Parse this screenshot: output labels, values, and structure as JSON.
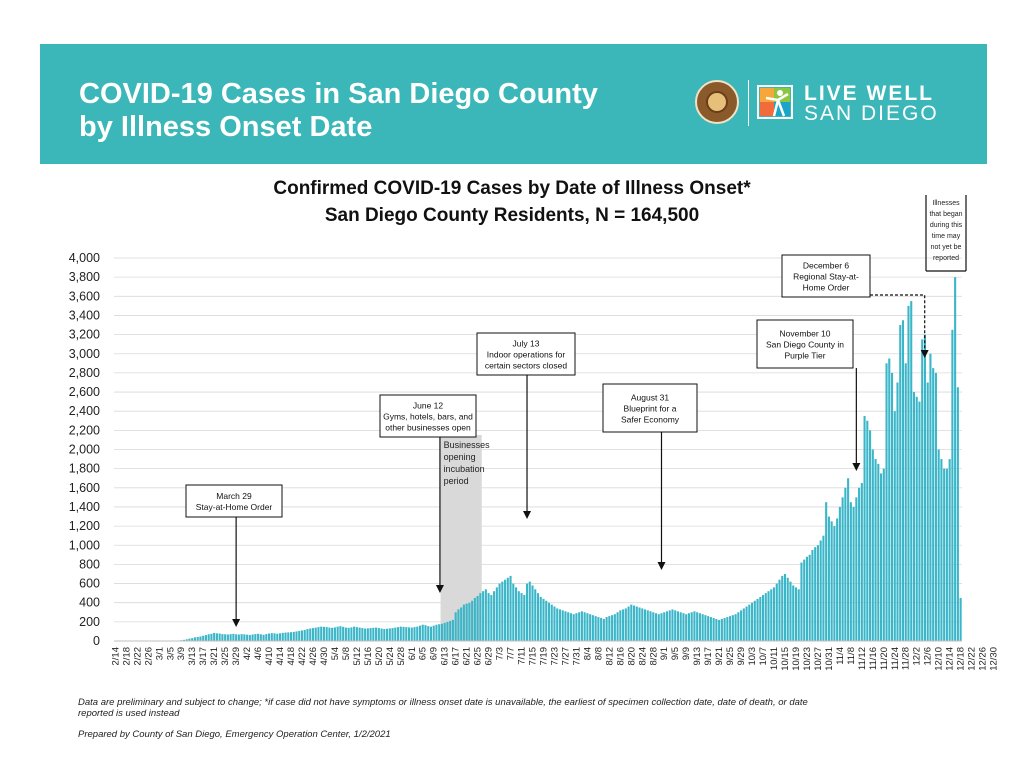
{
  "header": {
    "title_line1": "COVID-19 Cases in San Diego County",
    "title_line2": "by Illness Onset Date",
    "logo_line1": "LIVE WELL",
    "logo_line2": "SAN DIEGO"
  },
  "chart_data": {
    "type": "bar",
    "title": "Confirmed COVID-19 Cases by Date of Illness Onset*",
    "subtitle": "San Diego County Residents, N = 164,500",
    "ylim": [
      0,
      4000
    ],
    "yticks": [
      "0",
      "200",
      "400",
      "600",
      "800",
      "1,000",
      "1,200",
      "1,400",
      "1,600",
      "1,800",
      "2,000",
      "2,200",
      "2,400",
      "2,600",
      "2,800",
      "3,000",
      "3,200",
      "3,400",
      "3,600",
      "3,800",
      "4,000"
    ],
    "grid": true,
    "bar_color": "#3bb6c8",
    "start_date": "2/14",
    "xtick_labels": [
      "2/14",
      "2/18",
      "2/22",
      "2/26",
      "3/1",
      "3/5",
      "3/9",
      "3/13",
      "3/17",
      "3/21",
      "3/25",
      "3/29",
      "4/2",
      "4/6",
      "4/10",
      "4/14",
      "4/18",
      "4/22",
      "4/26",
      "4/30",
      "5/4",
      "5/8",
      "5/12",
      "5/16",
      "5/20",
      "5/24",
      "5/28",
      "6/1",
      "6/5",
      "6/9",
      "6/13",
      "6/17",
      "6/21",
      "6/25",
      "6/29",
      "7/3",
      "7/7",
      "7/11",
      "7/15",
      "7/19",
      "7/23",
      "7/27",
      "7/31",
      "8/4",
      "8/8",
      "8/12",
      "8/16",
      "8/20",
      "8/24",
      "8/28",
      "9/1",
      "9/5",
      "9/9",
      "9/13",
      "9/17",
      "9/21",
      "9/25",
      "9/29",
      "10/3",
      "10/7",
      "10/11",
      "10/15",
      "10/19",
      "10/23",
      "10/27",
      "10/31",
      "11/4",
      "11/8",
      "11/12",
      "11/16",
      "11/20",
      "11/24",
      "11/28",
      "12/2",
      "12/6",
      "12/10",
      "12/14",
      "12/18",
      "12/22",
      "12/26",
      "12/30"
    ],
    "series": [
      {
        "values": [
          0,
          0,
          0,
          0,
          0,
          0,
          0,
          0,
          0,
          0,
          0,
          0,
          0,
          0,
          0,
          0,
          1,
          1,
          2,
          2,
          2,
          3,
          4,
          5,
          8,
          12,
          18,
          25,
          30,
          38,
          42,
          48,
          55,
          62,
          70,
          75,
          85,
          80,
          78,
          72,
          70,
          68,
          72,
          75,
          70,
          68,
          72,
          70,
          66,
          62,
          68,
          72,
          75,
          70,
          65,
          72,
          78,
          82,
          80,
          76,
          80,
          85,
          88,
          90,
          92,
          95,
          100,
          105,
          110,
          115,
          125,
          130,
          135,
          140,
          145,
          150,
          148,
          145,
          140,
          138,
          142,
          150,
          155,
          148,
          140,
          138,
          142,
          150,
          145,
          140,
          135,
          130,
          132,
          135,
          138,
          140,
          135,
          130,
          125,
          128,
          132,
          135,
          140,
          145,
          150,
          148,
          145,
          142,
          140,
          145,
          150,
          160,
          170,
          165,
          155,
          150,
          160,
          170,
          175,
          180,
          190,
          200,
          210,
          220,
          300,
          330,
          350,
          380,
          390,
          400,
          420,
          450,
          470,
          500,
          520,
          540,
          500,
          480,
          520,
          560,
          600,
          620,
          640,
          660,
          680,
          600,
          560,
          520,
          500,
          480,
          600,
          620,
          580,
          540,
          500,
          460,
          440,
          420,
          400,
          380,
          360,
          340,
          330,
          320,
          310,
          300,
          290,
          280,
          290,
          300,
          310,
          300,
          290,
          280,
          270,
          260,
          250,
          240,
          230,
          250,
          260,
          270,
          280,
          300,
          320,
          330,
          340,
          360,
          380,
          370,
          360,
          350,
          340,
          330,
          320,
          310,
          300,
          290,
          280,
          290,
          300,
          310,
          320,
          330,
          320,
          310,
          300,
          290,
          280,
          290,
          300,
          310,
          300,
          290,
          280,
          270,
          260,
          250,
          240,
          230,
          220,
          230,
          240,
          250,
          260,
          270,
          280,
          300,
          320,
          340,
          360,
          380,
          400,
          420,
          440,
          460,
          480,
          500,
          520,
          540,
          560,
          600,
          640,
          680,
          700,
          660,
          620,
          580,
          560,
          540,
          820,
          850,
          880,
          900,
          950,
          980,
          1000,
          1050,
          1100,
          1450,
          1300,
          1250,
          1200,
          1280,
          1400,
          1500,
          1600,
          1700,
          1450,
          1400,
          1500,
          1600,
          1650,
          2350,
          2300,
          2200,
          2000,
          1900,
          1850,
          1750,
          1800,
          2900,
          2950,
          2800,
          2400,
          2700,
          3300,
          3350,
          2900,
          3500,
          3550,
          2600,
          2550,
          2500,
          3150,
          3200,
          2700,
          3000,
          2850,
          2800,
          2000,
          1900,
          1800,
          1800,
          1900,
          3250,
          3800,
          2650,
          450
        ]
      }
    ],
    "annotations": [
      {
        "label_lines": [
          "March 29",
          "Stay-at-Home Order"
        ],
        "date": "3/29"
      },
      {
        "label_lines": [
          "June 12",
          "Gyms, hotels, bars, and",
          "other businesses open"
        ],
        "date": "6/12"
      },
      {
        "label_lines": [
          "July 13",
          "Indoor operations for",
          "certain sectors closed"
        ],
        "date": "7/13"
      },
      {
        "label_lines": [
          "August 31",
          "Blueprint for a",
          "Safer Economy"
        ],
        "date": "8/31"
      },
      {
        "label_lines": [
          "November 10",
          "San Diego County in",
          "Purple Tier"
        ],
        "date": "11/10"
      },
      {
        "label_lines": [
          "December 6",
          "Regional Stay-at-",
          "Home Order"
        ],
        "date": "12/6"
      },
      {
        "label_lines": [
          "Illnesses",
          "that began",
          "during this",
          "time may",
          "not yet be",
          "reported"
        ],
        "date": "12/22"
      }
    ],
    "shaded_period": {
      "label_lines": [
        "Businesses",
        "opening",
        "incubation",
        "period"
      ],
      "start": "6/12",
      "end": "6/26"
    }
  },
  "footnotes": {
    "note": "Data are preliminary and subject to change; *if case did not have symptoms or illness onset date is unavailable, the earliest of specimen collection date, date of death, or date reported is used instead",
    "note_line1": "Data are preliminary and subject to change; *if case did not have symptoms or illness onset date is unavailable, the earliest of specimen collection date, date of death, or date",
    "note_line2": "reported is used instead",
    "prepared": "Prepared by County of San Diego, Emergency Operation Center, 1/2/2021"
  }
}
